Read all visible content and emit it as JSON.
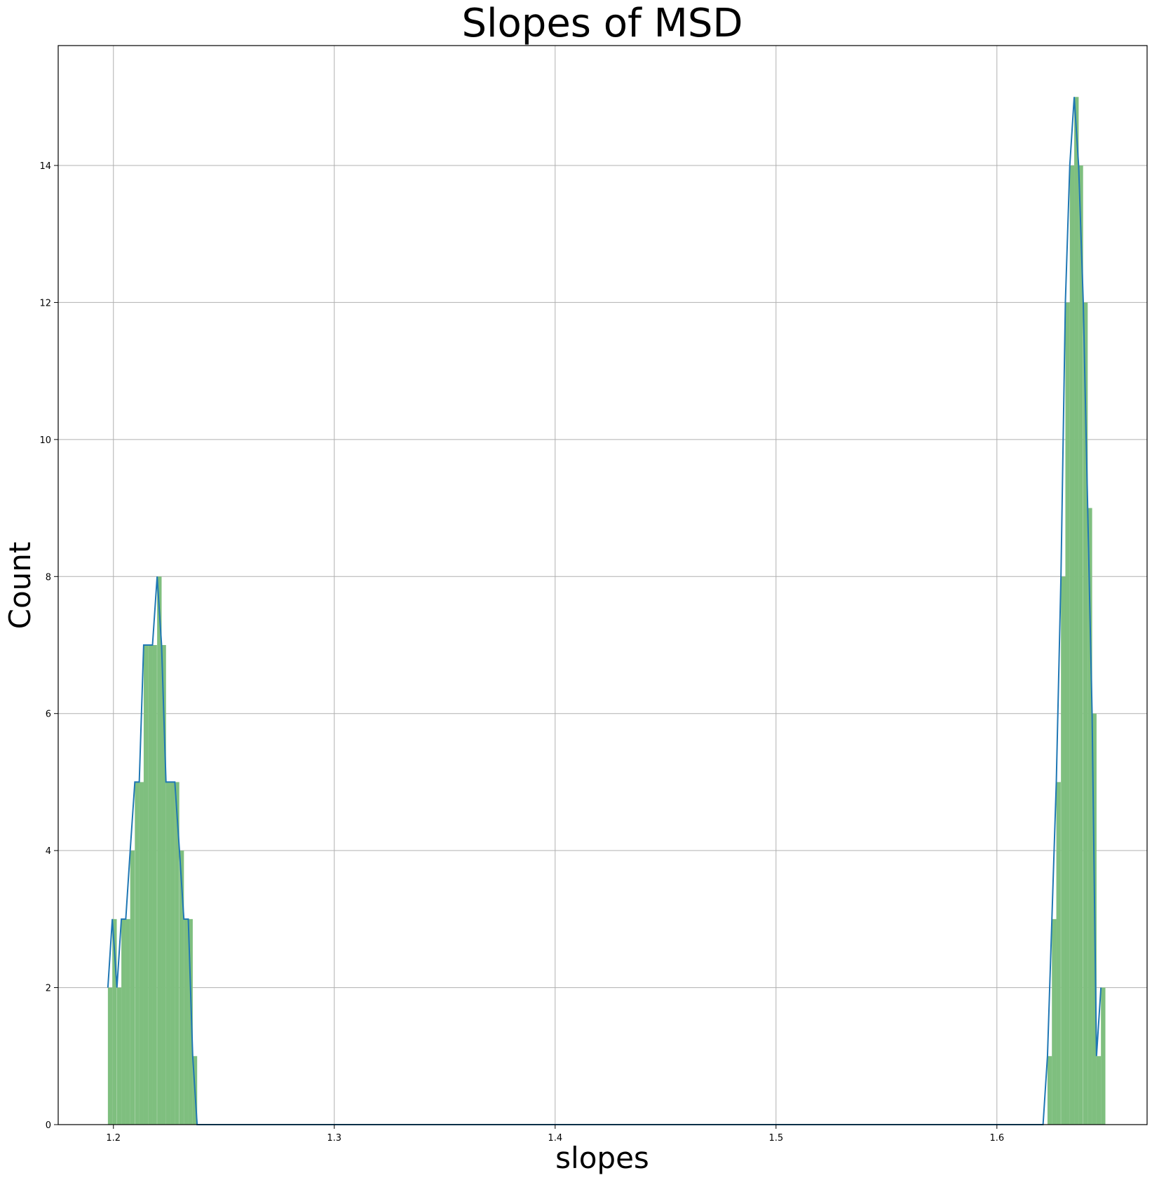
{
  "chart_data": {
    "type": "bar",
    "title": "Slopes of MSD",
    "xlabel": "slopes",
    "ylabel": "Count",
    "xlim": [
      1.175,
      1.668
    ],
    "ylim": [
      0,
      15.75
    ],
    "xticks": [
      1.2,
      1.3,
      1.4,
      1.5,
      1.6
    ],
    "xtick_labels": [
      "1.2",
      "1.3",
      "1.4",
      "1.5",
      "1.6"
    ],
    "yticks": [
      0,
      2,
      4,
      6,
      8,
      10,
      12,
      14
    ],
    "ytick_labels": [
      "0",
      "2",
      "4",
      "6",
      "8",
      "10",
      "12",
      "14"
    ],
    "grid": true,
    "colors": {
      "bars": "#7fbf7f",
      "line": "#1f77b4"
    },
    "series": [
      {
        "type": "histogram",
        "bins": [
          {
            "x": 1.1975,
            "count": 2
          },
          {
            "x": 1.1995,
            "count": 3
          },
          {
            "x": 1.2016,
            "count": 2
          },
          {
            "x": 1.2036,
            "count": 3
          },
          {
            "x": 1.2056,
            "count": 3
          },
          {
            "x": 1.2076,
            "count": 4
          },
          {
            "x": 1.2097,
            "count": 5
          },
          {
            "x": 1.2117,
            "count": 5
          },
          {
            "x": 1.2137,
            "count": 7
          },
          {
            "x": 1.2157,
            "count": 7
          },
          {
            "x": 1.2177,
            "count": 7
          },
          {
            "x": 1.2198,
            "count": 8
          },
          {
            "x": 1.2218,
            "count": 7
          },
          {
            "x": 1.2238,
            "count": 5
          },
          {
            "x": 1.2258,
            "count": 5
          },
          {
            "x": 1.2278,
            "count": 5
          },
          {
            "x": 1.2299,
            "count": 4
          },
          {
            "x": 1.2319,
            "count": 3
          },
          {
            "x": 1.2339,
            "count": 3
          },
          {
            "x": 1.2359,
            "count": 1
          },
          {
            "x": 1.6229,
            "count": 1
          },
          {
            "x": 1.6249,
            "count": 3
          },
          {
            "x": 1.6269,
            "count": 5
          },
          {
            "x": 1.629,
            "count": 8
          },
          {
            "x": 1.631,
            "count": 12
          },
          {
            "x": 1.633,
            "count": 14
          },
          {
            "x": 1.635,
            "count": 15
          },
          {
            "x": 1.637,
            "count": 14
          },
          {
            "x": 1.6391,
            "count": 12
          },
          {
            "x": 1.6411,
            "count": 9
          },
          {
            "x": 1.6431,
            "count": 6
          },
          {
            "x": 1.6451,
            "count": 1
          },
          {
            "x": 1.6471,
            "count": 2
          }
        ],
        "bin_width": 0.00202
      },
      {
        "type": "line",
        "x": [
          1.1975,
          1.1995,
          1.2016,
          1.2036,
          1.2056,
          1.2076,
          1.2097,
          1.2117,
          1.2137,
          1.2157,
          1.2177,
          1.2198,
          1.2218,
          1.2238,
          1.2258,
          1.2278,
          1.2299,
          1.2319,
          1.2339,
          1.2359,
          1.2379,
          1.6209,
          1.6229,
          1.6249,
          1.6269,
          1.629,
          1.631,
          1.633,
          1.635,
          1.637,
          1.6391,
          1.6411,
          1.6431,
          1.6451,
          1.6471
        ],
        "y": [
          2,
          3,
          2,
          3,
          3,
          4,
          5,
          5,
          7,
          7,
          7,
          8,
          7,
          5,
          5,
          5,
          4,
          3,
          3,
          1,
          0,
          0,
          1,
          3,
          5,
          8,
          12,
          14,
          15,
          14,
          12,
          9,
          6,
          1,
          2
        ]
      }
    ]
  }
}
